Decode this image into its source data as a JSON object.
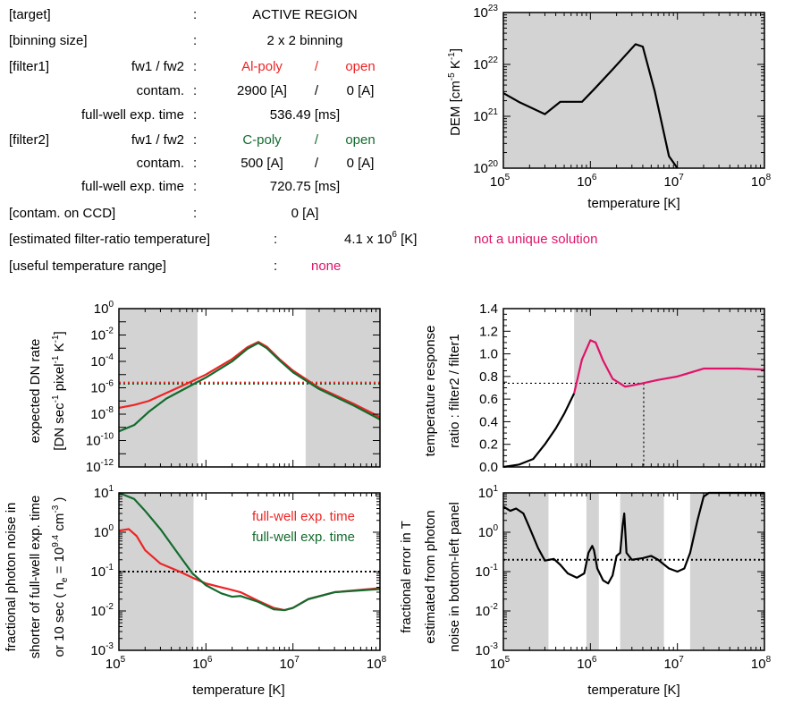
{
  "header": {
    "rows": {
      "target": {
        "label": "[target]",
        "sep": ":",
        "value": "ACTIVE REGION"
      },
      "binning": {
        "label": "[binning size]",
        "sep": ":",
        "value": "2 x 2 binning"
      },
      "filter1": {
        "label": "[filter1]",
        "fw_label": "fw1 / fw2",
        "sep": ":",
        "fw1": "Al-poly",
        "slash": "/",
        "fw2": "open",
        "contam_label": "contam.",
        "contam1": "2900 [A]",
        "contam2": "0 [A]",
        "exp_label": "full-well exp. time",
        "exp_value": "536.49 [ms]"
      },
      "filter2": {
        "label": "[filter2]",
        "fw_label": "fw1 / fw2",
        "sep": ":",
        "fw1": "C-poly",
        "slash": "/",
        "fw2": "open",
        "contam_label": "contam.",
        "contam1": "500 [A]",
        "contam2": "0 [A]",
        "exp_label": "full-well exp. time",
        "exp_value": "720.75 [ms]"
      },
      "ccd": {
        "label": "[contam. on CCD]",
        "sep": ":",
        "value": "0 [A]"
      },
      "estimated": {
        "label": "[estimated filter-ratio temperature]",
        "sep": ":",
        "value_base": "4.1 x 10",
        "value_exp": "6",
        "value_unit": " [K]",
        "note": "not a unique solution"
      },
      "useful": {
        "label": "[useful temperature range]",
        "sep": ":",
        "value": "none"
      }
    }
  },
  "colors": {
    "filter1": "#ee2424",
    "filter2": "#136b2e",
    "highlight": "#e0136a",
    "shade": "#d3d3d3"
  },
  "chart_data": [
    {
      "id": "dem",
      "type": "line",
      "xscale": "log",
      "yscale": "log",
      "xlim": [
        100000,
        100000000
      ],
      "ylim": [
        1e+20,
        1e+23
      ],
      "xlabel": "temperature [K]",
      "ylabel": {
        "base": "DEM [cm",
        "e1": "-5",
        "mid": " K",
        "e2": "-1",
        "end": "]"
      },
      "xticks": [
        [
          100000,
          "10",
          "5"
        ],
        [
          1000000,
          "10",
          "6"
        ],
        [
          10000000,
          "10",
          "7"
        ],
        [
          100000000,
          "10",
          "8"
        ]
      ],
      "yticks": [
        [
          1e+20,
          "10",
          "20"
        ],
        [
          1e+21,
          "10",
          "21"
        ],
        [
          1e+22,
          "10",
          "22"
        ],
        [
          1e+23,
          "10",
          "23"
        ]
      ],
      "shade_ranges": [
        [
          100000,
          100000000
        ]
      ],
      "series": [
        {
          "color": "#000000",
          "x": [
            100000,
            150000,
            300000,
            450000,
            550000,
            800000,
            1100000,
            1800000,
            3300000,
            4000000,
            5500000,
            8000000,
            10000000
          ],
          "y": [
            2.8e+21,
            1.9e+21,
            1.1e+21,
            1.9e+21,
            1.9e+21,
            1.9e+21,
            3.3e+21,
            8e+21,
            2.45e+22,
            2.2e+22,
            3e+21,
            1.7e+20,
            8e+19
          ]
        }
      ]
    },
    {
      "id": "dn-rate",
      "type": "line",
      "xscale": "log",
      "yscale": "log",
      "xlim": [
        100000,
        100000000
      ],
      "ylim": [
        1e-12,
        1
      ],
      "ylabel1": "expected DN rate",
      "ylabel2": {
        "p1": "[DN sec",
        "e1": "-1",
        "p2": " pixel",
        "e2": "-1",
        "p3": " K",
        "e3": "-1",
        "p4": "]"
      },
      "yticks": [
        [
          1,
          "10",
          "0"
        ],
        [
          0.01,
          "10",
          "-2"
        ],
        [
          0.0001,
          "10",
          "-4"
        ],
        [
          1e-06,
          "10",
          "-6"
        ],
        [
          1e-08,
          "10",
          "-8"
        ],
        [
          1e-10,
          "10",
          "-10"
        ],
        [
          1e-12,
          "10",
          "-12"
        ]
      ],
      "shade_ranges": [
        [
          100000,
          800000
        ],
        [
          14000000,
          100000000
        ]
      ],
      "hlines": [
        {
          "y": 2.5e-06,
          "color": "#ee2424"
        },
        {
          "y": 2e-06,
          "color": "#136b2e"
        }
      ],
      "series": [
        {
          "name": "filter1",
          "color": "#ee2424",
          "x": [
            100000,
            150000,
            220000,
            350000,
            600000,
            1000000,
            2000000,
            3000000,
            4000000,
            5000000,
            7000000,
            10000000,
            20000000,
            50000000,
            100000000
          ],
          "y": [
            3e-08,
            5e-08,
            1e-07,
            4e-07,
            2e-06,
            1e-05,
            0.00015,
            0.0012,
            0.003,
            0.0013,
            0.00015,
            2e-05,
            1e-06,
            6e-08,
            6e-09
          ]
        },
        {
          "name": "filter2",
          "color": "#136b2e",
          "x": [
            100000,
            150000,
            220000,
            350000,
            600000,
            1000000,
            2000000,
            3000000,
            4000000,
            5000000,
            7000000,
            10000000,
            20000000,
            50000000,
            100000000
          ],
          "y": [
            5e-10,
            1.5e-09,
            1.5e-08,
            1.5e-07,
            1e-06,
            6e-06,
            0.0001,
            0.0009,
            0.0025,
            0.001,
            0.00012,
            1.5e-05,
            8e-07,
            4.5e-08,
            4e-09
          ]
        }
      ]
    },
    {
      "id": "ratio",
      "type": "line",
      "xscale": "log",
      "yscale": "linear",
      "xlim": [
        100000,
        100000000
      ],
      "ylim": [
        0,
        1.4
      ],
      "ylabel1": "temperature response",
      "ylabel2": "ratio : filter2 / filter1",
      "yticks": [
        [
          1.4,
          "1.4"
        ],
        [
          1.2,
          "1.2"
        ],
        [
          1.0,
          "1.0"
        ],
        [
          0.8,
          "0.8"
        ],
        [
          0.6,
          "0.6"
        ],
        [
          0.4,
          "0.4"
        ],
        [
          0.2,
          "0.2"
        ],
        [
          0.0,
          "0.0"
        ]
      ],
      "shade_ranges": [
        [
          650000,
          100000000
        ]
      ],
      "guide": {
        "x": 4100000,
        "y": 0.74
      },
      "series": [
        {
          "color": "#000000",
          "x": [
            100000,
            150000,
            220000,
            300000,
            400000,
            500000,
            650000
          ],
          "y": [
            0.0,
            0.02,
            0.07,
            0.2,
            0.34,
            0.47,
            0.65
          ]
        },
        {
          "color": "#e0136a",
          "x": [
            650000,
            800000,
            1000000,
            1150000,
            1400000,
            1800000,
            2500000,
            3000000,
            4000000,
            6000000,
            10000000,
            20000000,
            50000000,
            100000000
          ],
          "y": [
            0.65,
            0.95,
            1.12,
            1.1,
            0.94,
            0.78,
            0.71,
            0.72,
            0.74,
            0.77,
            0.8,
            0.87,
            0.87,
            0.86
          ]
        }
      ]
    },
    {
      "id": "photon-noise",
      "type": "line",
      "xscale": "log",
      "yscale": "log",
      "xlim": [
        100000,
        100000000
      ],
      "ylim": [
        0.001,
        10
      ],
      "xlabel": "temperature [K]",
      "ylabel1": "fractional photon noise in",
      "ylabel2": "shorter of full-well exp. time",
      "ylabel3": {
        "p1": "or 10 sec ( n",
        "sub": "e",
        "p2": " = 10",
        "e1": "9.4",
        "p3": " cm",
        "e2": "-3",
        "p4": " )"
      },
      "xticks": [
        [
          100000,
          "10",
          "5"
        ],
        [
          1000000,
          "10",
          "6"
        ],
        [
          10000000,
          "10",
          "7"
        ],
        [
          100000000,
          "10",
          "8"
        ]
      ],
      "yticks": [
        [
          10,
          "10",
          "1"
        ],
        [
          1,
          "10",
          "0"
        ],
        [
          0.1,
          "10",
          "-1"
        ],
        [
          0.01,
          "10",
          "-2"
        ],
        [
          0.001,
          "10",
          "-3"
        ]
      ],
      "shade_ranges": [
        [
          100000,
          720000
        ]
      ],
      "hline": 0.1,
      "legend": [
        {
          "label": "full-well exp. time",
          "color": "#ee2424"
        },
        {
          "label": "full-well exp. time",
          "color": "#136b2e"
        }
      ],
      "series": [
        {
          "name": "filter1",
          "color": "#ee2424",
          "x": [
            100000,
            130000,
            160000,
            200000,
            300000,
            500000,
            700000,
            1000000,
            1500000,
            2500000,
            4000000,
            6000000,
            8000000,
            10000000,
            15000000,
            30000000,
            100000000
          ],
          "y": [
            1.1,
            1.2,
            0.8,
            0.35,
            0.16,
            0.1,
            0.07,
            0.05,
            0.04,
            0.03,
            0.018,
            0.012,
            0.0105,
            0.012,
            0.02,
            0.03,
            0.038
          ]
        },
        {
          "name": "filter2",
          "color": "#136b2e",
          "x": [
            100000,
            150000,
            200000,
            300000,
            500000,
            700000,
            1000000,
            1500000,
            2000000,
            2500000,
            4000000,
            6000000,
            8000000,
            10000000,
            15000000,
            30000000,
            100000000
          ],
          "y": [
            12,
            7,
            3.5,
            1.2,
            0.25,
            0.09,
            0.045,
            0.028,
            0.023,
            0.024,
            0.017,
            0.011,
            0.0105,
            0.012,
            0.02,
            0.03,
            0.036
          ]
        }
      ]
    },
    {
      "id": "temp-error",
      "type": "line",
      "xscale": "log",
      "yscale": "log",
      "xlim": [
        100000,
        100000000
      ],
      "ylim": [
        0.001,
        10
      ],
      "xlabel": "temperature [K]",
      "ylabel1": "fractional error in T",
      "ylabel2": "estimated from photon",
      "ylabel3": "noise in bottom-left panel",
      "xticks": [
        [
          100000,
          "10",
          "5"
        ],
        [
          1000000,
          "10",
          "6"
        ],
        [
          10000000,
          "10",
          "7"
        ],
        [
          100000000,
          "10",
          "8"
        ]
      ],
      "yticks": [
        [
          10,
          "10",
          "1"
        ],
        [
          1,
          "10",
          "0"
        ],
        [
          0.1,
          "10",
          "-1"
        ],
        [
          0.01,
          "10",
          "-2"
        ],
        [
          0.001,
          "10",
          "-3"
        ]
      ],
      "shade_ranges": [
        [
          100000,
          330000
        ],
        [
          900000,
          1250000
        ],
        [
          2200000,
          7000000
        ],
        [
          14000000,
          100000000
        ]
      ],
      "hline": 0.2,
      "series": [
        {
          "color": "#000000",
          "x": [
            100000,
            120000,
            140000,
            170000,
            200000,
            250000,
            300000,
            380000,
            450000,
            550000,
            700000,
            850000,
            950000,
            1050000,
            1100000,
            1200000,
            1400000,
            1600000,
            1800000,
            2000000,
            2200000,
            2350000,
            2450000,
            2600000,
            3000000,
            4000000,
            5000000,
            6000000,
            8000000,
            10000000,
            12000000,
            14000000,
            17000000,
            20000000,
            23000000,
            30000000,
            50000000,
            100000000
          ],
          "y": [
            4.5,
            3.5,
            4.0,
            3.0,
            1.3,
            0.4,
            0.19,
            0.21,
            0.15,
            0.09,
            0.07,
            0.09,
            0.3,
            0.45,
            0.35,
            0.12,
            0.06,
            0.05,
            0.08,
            0.25,
            0.3,
            1.5,
            3.0,
            0.3,
            0.2,
            0.22,
            0.25,
            0.2,
            0.12,
            0.1,
            0.12,
            0.3,
            2.0,
            8.0,
            10.0,
            10.0,
            10.0,
            10.0
          ]
        }
      ]
    }
  ]
}
